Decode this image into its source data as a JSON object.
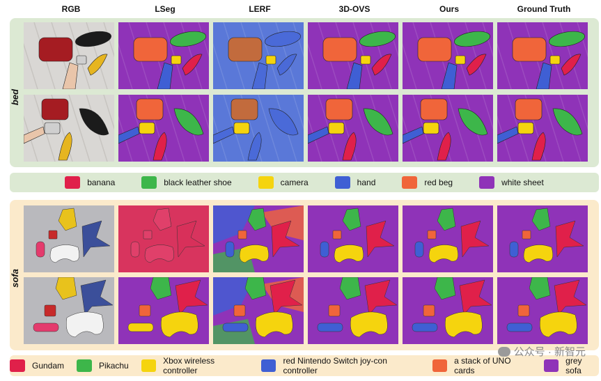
{
  "columns": [
    "RGB",
    "LSeg",
    "LERF",
    "3D-OVS",
    "Ours",
    "Ground Truth"
  ],
  "scenes": [
    {
      "label": "bed",
      "legend": [
        {
          "name": "banana",
          "color": "#e0204a"
        },
        {
          "name": "black leather shoe",
          "color": "#3db64a"
        },
        {
          "name": "camera",
          "color": "#f5d40e"
        },
        {
          "name": "hand",
          "color": "#3f5fd4"
        },
        {
          "name": "red beg",
          "color": "#f0653a"
        },
        {
          "name": "white sheet",
          "color": "#8f33b8"
        }
      ]
    },
    {
      "label": "sofa",
      "legend": [
        {
          "name": "Gundam",
          "color": "#e0204a"
        },
        {
          "name": "Pikachu",
          "color": "#3db64a"
        },
        {
          "name": "Xbox wireless controller",
          "color": "#f5d40e"
        },
        {
          "name": "red Nintendo Switch joy-con controller",
          "color": "#3f5fd4"
        },
        {
          "name": "a stack of UNO cards",
          "color": "#f0653a"
        },
        {
          "name": "grey sofa",
          "color": "#8f33b8"
        }
      ]
    }
  ],
  "watermark": "公众号 · 新智元"
}
